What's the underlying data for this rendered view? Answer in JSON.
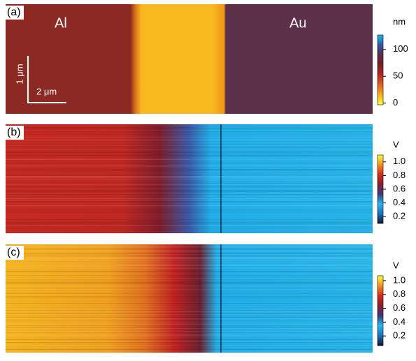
{
  "chart_data": [
    {
      "type": "image",
      "panel_label": "(a)",
      "annotations": [
        "Al",
        "Au"
      ],
      "scale_bar": [
        "1 μm",
        "2 μm"
      ],
      "colorbar_label": "nm",
      "ylim": [
        -3,
        127
      ],
      "yticks": [
        0,
        50,
        100
      ],
      "colormap": [
        "#ffff40",
        "#f5b020",
        "#e06020",
        "#b02820",
        "#7a1e24",
        "#5a2c48",
        "#2e5aa0",
        "#28b8e6"
      ]
    },
    {
      "type": "image",
      "panel_label": "(b)",
      "colorbar_label": "V",
      "ylim": [
        0.1,
        1.1
      ],
      "yticks": [
        0.2,
        0.4,
        0.6,
        0.8,
        {
          "value": 1,
          "label": "1.0"
        }
      ],
      "colormap": [
        "#101828",
        "#1c6cc0",
        "#28b8ec",
        "#3a3a78",
        "#8a1e2a",
        "#d02a20",
        "#f09020",
        "#ffff40"
      ]
    },
    {
      "type": "image",
      "panel_label": "(c)",
      "colorbar_label": "V",
      "ylim": [
        0.06,
        1.07
      ],
      "yticks": [
        0.2,
        0.4,
        0.6,
        0.8,
        {
          "value": 1,
          "label": "1.0"
        }
      ],
      "colormap": [
        "#101828",
        "#1c6cc0",
        "#28b8ec",
        "#3a3a78",
        "#8a1e2a",
        "#d02a20",
        "#f09020",
        "#ffff40"
      ]
    }
  ]
}
